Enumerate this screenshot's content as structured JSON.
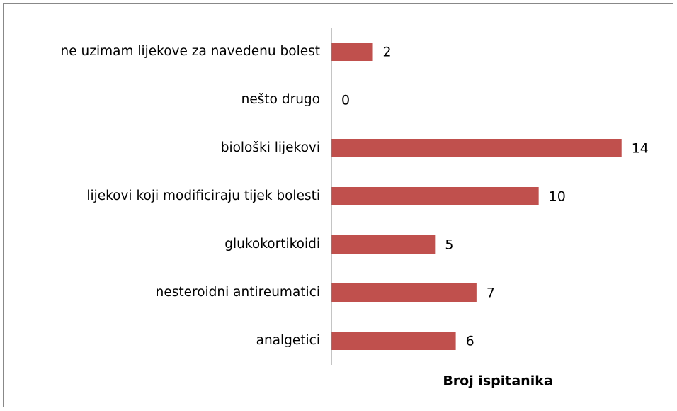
{
  "chart_data": {
    "type": "bar",
    "orientation": "horizontal",
    "categories": [
      "ne uzimam lijekove za navedenu bolest",
      "nešto drugo",
      "biološki lijekovi",
      "lijekovi koji modificiraju tijek bolesti",
      "glukokortikoidi",
      "nesteroidni antireumatici",
      "analgetici"
    ],
    "values": [
      2,
      0,
      14,
      10,
      5,
      7,
      6
    ],
    "color": "#c0504d",
    "xlim": [
      0,
      15
    ],
    "x_label": "Broj ispitanika"
  }
}
